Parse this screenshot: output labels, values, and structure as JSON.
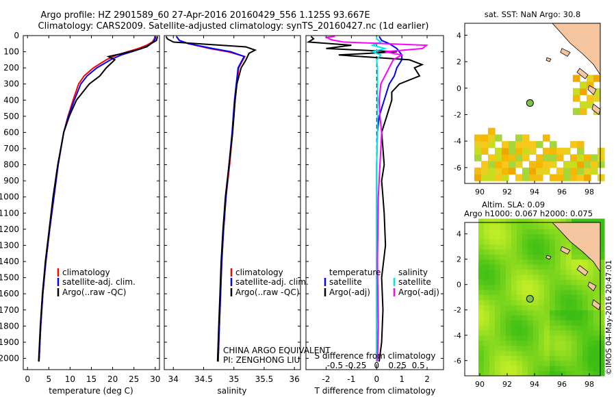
{
  "header": {
    "line1": "Argo profile: HZ 2901589_60 27-Apr-2016 20160429_556 1.125S 93.667E",
    "line2": "Climatology: CARS2009. Satellite-adjusted climatology: synTS_20160427.nc (1d earlier)"
  },
  "colors": {
    "climatology": "#ff0000",
    "satellite": "#0000ff",
    "argo": "#000000",
    "s_sat": "#00e5ee",
    "s_argo": "#ff00ff",
    "land": "#f5c6a0",
    "sla": "#8fe83a"
  },
  "chart_data": [
    {
      "type": "line",
      "xlabel": "temperature (deg C)",
      "ylabel": "",
      "xlim": [
        -1,
        31
      ],
      "ylim": [
        2070,
        0
      ],
      "xticks": [
        "0",
        "5",
        "10",
        "15",
        "20",
        "25",
        "30"
      ],
      "yticks": [
        "0",
        "100",
        "200",
        "300",
        "400",
        "500",
        "600",
        "700",
        "800",
        "900",
        "1000",
        "1100",
        "1200",
        "1300",
        "1400",
        "1500",
        "1600",
        "1700",
        "1800",
        "1900",
        "2000"
      ],
      "legend": [
        "climatology",
        "satellite-adj. clim.",
        "Argo(..raw -QC)"
      ],
      "series": [
        {
          "name": "climatology",
          "depth": [
            2020,
            1800,
            1600,
            1400,
            1200,
            1000,
            800,
            600,
            500,
            400,
            300,
            250,
            200,
            150,
            120,
            100,
            80,
            60,
            40,
            20,
            5
          ],
          "values": [
            2.7,
            3.1,
            3.6,
            4.3,
            5.2,
            6.2,
            7.2,
            8.5,
            9.5,
            10.7,
            12.0,
            13.3,
            15.5,
            18.5,
            21.0,
            23.5,
            26.0,
            28.0,
            29.3,
            29.8,
            29.9
          ]
        },
        {
          "name": "satellite-adj. clim.",
          "depth": [
            2020,
            1800,
            1600,
            1400,
            1200,
            1000,
            800,
            600,
            500,
            400,
            300,
            250,
            200,
            150,
            120,
            100,
            80,
            60,
            40,
            20,
            5
          ],
          "values": [
            2.7,
            3.1,
            3.6,
            4.3,
            5.2,
            6.2,
            7.2,
            8.5,
            9.6,
            11.0,
            12.5,
            14.0,
            16.3,
            19.5,
            22.0,
            24.5,
            26.8,
            28.5,
            29.5,
            30.0,
            30.1
          ]
        },
        {
          "name": "Argo(..raw -QC)",
          "depth": [
            2020,
            1800,
            1600,
            1400,
            1200,
            1000,
            800,
            600,
            500,
            400,
            300,
            250,
            200,
            150,
            130,
            110,
            90,
            70,
            50,
            30,
            10,
            5
          ],
          "values": [
            2.6,
            3.0,
            3.5,
            4.2,
            5.1,
            6.0,
            7.1,
            8.5,
            9.8,
            11.5,
            14.5,
            17.0,
            18.5,
            20.5,
            19.0,
            22.5,
            25.5,
            28.0,
            29.0,
            30.3,
            30.5,
            30.4
          ]
        }
      ]
    },
    {
      "type": "line",
      "xlabel": "salinity",
      "xlim": [
        33.85,
        36.1
      ],
      "ylim": [
        2070,
        0
      ],
      "xticks": [
        "34",
        "34.5",
        "35",
        "35.5",
        "36"
      ],
      "legend": [
        "climatology",
        "satellite-adj. clim.",
        "Argo(..raw -QC)"
      ],
      "annotation": [
        "CHINA ARGO EQUIVALENT",
        "PI: ZENGHONG LIU"
      ],
      "series": [
        {
          "name": "climatology",
          "depth": [
            2020,
            1800,
            1600,
            1400,
            1200,
            1000,
            800,
            600,
            500,
            400,
            300,
            200,
            150,
            130,
            100,
            80,
            50,
            30,
            5
          ],
          "values": [
            34.74,
            34.76,
            34.78,
            34.8,
            34.83,
            34.87,
            34.93,
            34.98,
            35.0,
            35.02,
            35.05,
            35.08,
            35.15,
            35.18,
            34.9,
            34.6,
            34.25,
            34.1,
            34.05
          ]
        },
        {
          "name": "satellite-adj. clim.",
          "depth": [
            2020,
            1800,
            1600,
            1400,
            1200,
            1000,
            800,
            600,
            500,
            400,
            300,
            200,
            150,
            130,
            100,
            80,
            50,
            30,
            5
          ],
          "values": [
            34.74,
            34.76,
            34.78,
            34.8,
            34.83,
            34.87,
            34.92,
            34.97,
            34.99,
            35.01,
            35.04,
            35.07,
            35.14,
            35.17,
            34.95,
            34.65,
            34.25,
            34.1,
            34.05
          ]
        },
        {
          "name": "Argo(..raw -QC)",
          "depth": [
            2020,
            1800,
            1600,
            1400,
            1200,
            1000,
            800,
            600,
            500,
            400,
            300,
            200,
            150,
            110,
            90,
            70,
            55,
            40,
            20,
            5
          ],
          "values": [
            34.73,
            34.75,
            34.77,
            34.79,
            34.82,
            34.86,
            34.92,
            34.98,
            35.0,
            35.02,
            35.05,
            35.12,
            35.2,
            35.25,
            35.35,
            35.2,
            34.6,
            34.0,
            33.9,
            33.88
          ]
        }
      ]
    },
    {
      "type": "line",
      "xlabel": "T difference from climatology",
      "top_xlabel": "S difference from climatology",
      "xlim": [
        -2.8,
        2.65
      ],
      "ylim": [
        2070,
        0
      ],
      "xticks": [
        "-2",
        "-1",
        "0",
        "1",
        "2"
      ],
      "top_xticks": [
        "-0.5",
        "-0.25",
        "0",
        "0.25",
        "0.5"
      ],
      "legend": [
        "temperature",
        "satellite",
        "Argo(-adj)",
        "salinity",
        "satellite",
        "Argo(-adj)"
      ],
      "series": [
        {
          "name": "T satellite",
          "depth": [
            2020,
            1800,
            1600,
            1200,
            800,
            600,
            500,
            400,
            300,
            250,
            200,
            150,
            120,
            100,
            80,
            50,
            30,
            5
          ],
          "values": [
            0,
            0,
            0,
            0,
            0,
            0.03,
            0.1,
            0.3,
            0.5,
            0.7,
            0.8,
            1.0,
            1.0,
            0.9,
            0.8,
            0.5,
            0.2,
            0.1
          ]
        },
        {
          "name": "T Argo(-adj)",
          "depth": [
            2020,
            1900,
            1700,
            1500,
            1300,
            1100,
            1000,
            900,
            800,
            700,
            600,
            500,
            400,
            350,
            300,
            250,
            200,
            180,
            150,
            120,
            100,
            80,
            60,
            40,
            20,
            5
          ],
          "values": [
            0.1,
            0.2,
            0.25,
            0.2,
            0.35,
            0.3,
            0.25,
            0.2,
            0.3,
            0.25,
            0.2,
            0.4,
            0.6,
            0.6,
            0.9,
            1.7,
            1.5,
            1.8,
            1.3,
            -1.5,
            0.8,
            -2.0,
            -1.0,
            -2.7,
            -2.5,
            -2.6
          ]
        },
        {
          "name": "S satellite",
          "depth": [
            2020,
            1800,
            1400,
            1000,
            800,
            600,
            400,
            200,
            150,
            120,
            100,
            80,
            60,
            40,
            20,
            5
          ],
          "values": [
            0,
            0,
            0,
            0,
            0,
            0.01,
            0.01,
            0.01,
            0.0,
            0.05,
            -0.05,
            0.1,
            -0.05,
            0.05,
            0.0,
            0.0
          ]
        },
        {
          "name": "S Argo(-adj)",
          "depth": [
            2020,
            1800,
            1400,
            1000,
            900,
            800,
            700,
            600,
            500,
            400,
            300,
            200,
            150,
            120,
            100,
            80,
            60,
            40,
            25,
            10,
            5
          ],
          "values": [
            0.01,
            0.02,
            0.01,
            0.02,
            0.03,
            0.04,
            0.05,
            0.06,
            0.04,
            0.03,
            0.05,
            0.15,
            0.2,
            0.3,
            0.1,
            0.55,
            0.6,
            -0.4,
            -0.55,
            -0.6,
            -0.5
          ]
        }
      ]
    },
    {
      "type": "heatmap",
      "title": "sat. SST: NaN Argo: 30.8",
      "xlim": [
        88.9,
        98.8
      ],
      "ylim": [
        -7.2,
        4.9
      ],
      "xticks": [
        "90",
        "92",
        "94",
        "96",
        "98"
      ],
      "yticks": [
        "4",
        "2",
        "0",
        "-2",
        "-4",
        "-6"
      ],
      "float_lon": 93.667,
      "float_lat": -1.125
    },
    {
      "type": "heatmap",
      "title": "Altim. SLA: 0.09",
      "subtitle": "Argo h1000: 0.067 h2000: 0.075",
      "xlim": [
        88.9,
        98.8
      ],
      "ylim": [
        -7.2,
        4.9
      ],
      "xticks": [
        "90",
        "92",
        "94",
        "96",
        "98"
      ],
      "yticks": [
        "4",
        "2",
        "0",
        "-2",
        "-4",
        "-6"
      ],
      "float_lon": 93.667,
      "float_lat": -1.125
    }
  ],
  "footer": {
    "stamp": "©IMOS 04-May-2016 20:47:01"
  }
}
